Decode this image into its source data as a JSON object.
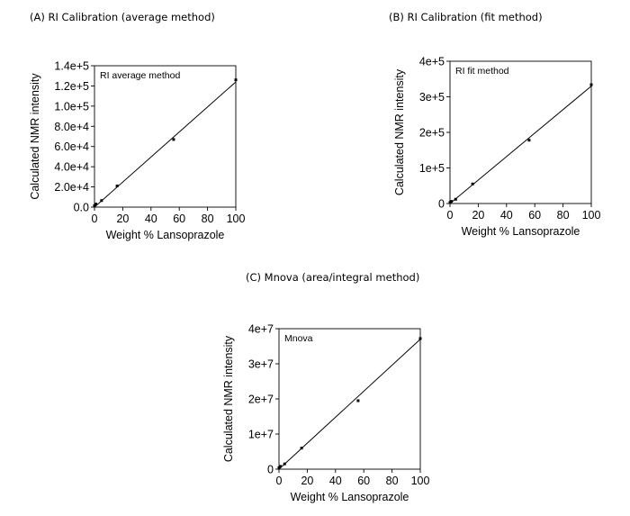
{
  "captions": {
    "a": "(A) RI Calibration (average method)",
    "b": "(B) RI Calibration (fit method)",
    "c": "(C) Mnova (area/integral method)"
  },
  "colors": {
    "axis": "#000000",
    "line": "#000000",
    "point": "#000000",
    "background": "#ffffff"
  },
  "chart_data": [
    {
      "type": "scatter",
      "title": "(A) RI Calibration (average method)",
      "label": "RI average method",
      "xlabel": "Weight % Lansoprazole",
      "ylabel": "Calculated NMR intensity",
      "xlim": [
        0,
        100
      ],
      "ylim": [
        0,
        140000
      ],
      "xticks": [
        0,
        20,
        40,
        60,
        80,
        100
      ],
      "xtick_labels": [
        "0",
        "20",
        "40",
        "60",
        "80",
        "100"
      ],
      "yticks": [
        0,
        20000,
        40000,
        60000,
        80000,
        100000,
        120000,
        140000
      ],
      "ytick_labels": [
        "0.0",
        "2.0e+4",
        "4.0e+4",
        "6.0e+4",
        "8.0e+4",
        "1.0e+5",
        "1.2e+5",
        "1.4e+5"
      ],
      "points": {
        "x": [
          0,
          1,
          5,
          16,
          56,
          100
        ],
        "y": [
          1500,
          3000,
          6500,
          21000,
          67000,
          126000
        ]
      },
      "fit_line": {
        "x": [
          0,
          100
        ],
        "y": [
          0,
          124000
        ]
      }
    },
    {
      "type": "scatter",
      "title": "(B) RI Calibration (fit method)",
      "label": "RI fit method",
      "xlabel": "Weight % Lansoprazole",
      "ylabel": "Calculated NMR intensity",
      "xlim": [
        0,
        100
      ],
      "ylim": [
        0,
        400000
      ],
      "xticks": [
        0,
        20,
        40,
        60,
        80,
        100
      ],
      "xtick_labels": [
        "0",
        "20",
        "40",
        "60",
        "80",
        "100"
      ],
      "yticks": [
        0,
        100000,
        200000,
        300000,
        400000
      ],
      "ytick_labels": [
        "0",
        "1e+5",
        "2e+5",
        "3e+5",
        "4e+5"
      ],
      "points": {
        "x": [
          0,
          1,
          4,
          16,
          56,
          100
        ],
        "y": [
          3000,
          6000,
          12000,
          55000,
          178000,
          334000
        ]
      },
      "fit_line": {
        "x": [
          0,
          100
        ],
        "y": [
          0,
          330000
        ]
      }
    },
    {
      "type": "scatter",
      "title": "(C) Mnova (area/integral method)",
      "label": "Mnova",
      "xlabel": "Weight % Lansoprazole",
      "ylabel": "Calculated NMR intensity",
      "xlim": [
        0,
        100
      ],
      "ylim": [
        0,
        40000000
      ],
      "xticks": [
        0,
        20,
        40,
        60,
        80,
        100
      ],
      "xtick_labels": [
        "0",
        "20",
        "40",
        "60",
        "80",
        "100"
      ],
      "yticks": [
        0,
        10000000,
        20000000,
        30000000,
        40000000
      ],
      "ytick_labels": [
        "0",
        "1e+7",
        "2e+7",
        "3e+7",
        "4e+7"
      ],
      "points": {
        "x": [
          0,
          1,
          4,
          16,
          56,
          100
        ],
        "y": [
          400000,
          800000,
          1500000,
          6000000,
          19500000,
          37200000
        ]
      },
      "fit_line": {
        "x": [
          0,
          100
        ],
        "y": [
          0,
          37000000
        ]
      }
    }
  ]
}
